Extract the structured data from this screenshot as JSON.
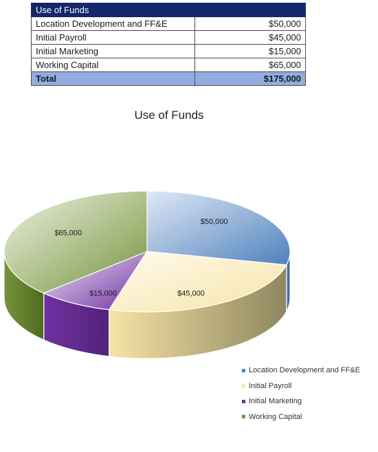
{
  "table": {
    "header": "Use of Funds",
    "rows": [
      {
        "label": "Location Development and FF&E",
        "amount": "$50,000"
      },
      {
        "label": "Initial Payroll",
        "amount": "$45,000"
      },
      {
        "label": "Initial Marketing",
        "amount": "$15,000"
      },
      {
        "label": "Working Capital",
        "amount": "$65,000"
      }
    ],
    "total": {
      "label": "Total",
      "amount": "$175,000"
    }
  },
  "chart_data": {
    "type": "pie",
    "title": "Use of Funds",
    "categories": [
      "Location Development and FF&E",
      "Initial Payroll",
      "Initial Marketing",
      "Working Capital"
    ],
    "values": [
      50000,
      45000,
      15000,
      65000
    ],
    "data_labels": [
      "$50,000",
      "$45,000",
      "$15,000",
      "$65,000"
    ],
    "legend_position": "bottom-right",
    "colors": [
      "#4f81bd",
      "#f6e4a5",
      "#7030a0",
      "#77933c"
    ]
  }
}
